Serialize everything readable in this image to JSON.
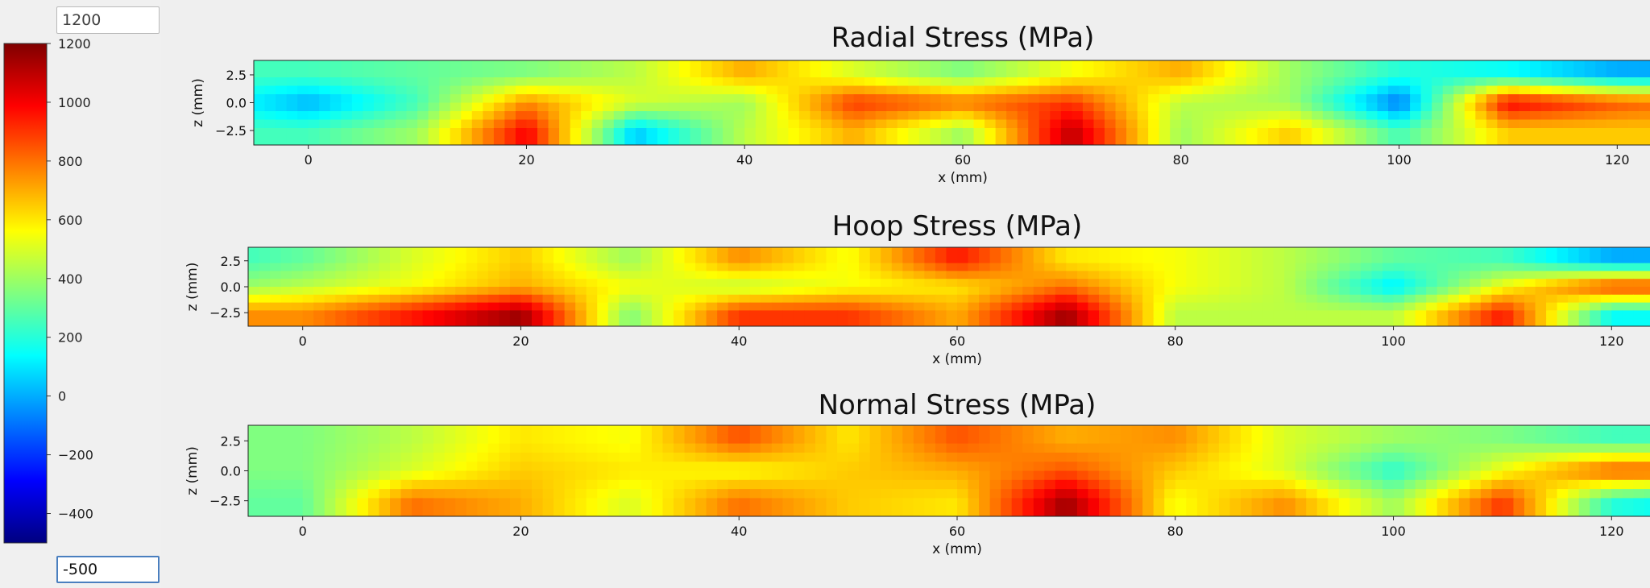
{
  "colorbar": {
    "max_input_value": "1200",
    "min_input_value": "-500",
    "colormap": "jet",
    "vmin": -500,
    "vmax": 1200,
    "ticks": [
      "1200",
      "1000",
      "800",
      "600",
      "400",
      "200",
      "0",
      "−200",
      "−400"
    ],
    "tick_values": [
      1200,
      1000,
      800,
      600,
      400,
      200,
      0,
      -200,
      -400
    ]
  },
  "chart_data": [
    {
      "type": "heatmap",
      "title": "Radial Stress (MPa)",
      "xlabel": "x (mm)",
      "ylabel": "z (mm)",
      "xlim": [
        -5,
        125
      ],
      "ylim": [
        -3.8,
        3.8
      ],
      "xticks": [
        0,
        20,
        40,
        60,
        80,
        100,
        120
      ],
      "yticks": [
        2.5,
        0.0,
        -2.5
      ],
      "xtick_labels": [
        "0",
        "20",
        "40",
        "60",
        "80",
        "100",
        "120"
      ],
      "ytick_labels": [
        "2.5",
        "0.0",
        "−2.5"
      ],
      "z_levels": [
        2.5,
        0.0,
        -2.5
      ],
      "x": [
        -5,
        0,
        10,
        20,
        30,
        40,
        50,
        60,
        70,
        80,
        90,
        100,
        110,
        120,
        125
      ],
      "values": [
        [
          250,
          250,
          300,
          350,
          450,
          700,
          500,
          350,
          550,
          700,
          400,
          200,
          150,
          0,
          0
        ],
        [
          100,
          0,
          250,
          750,
          500,
          400,
          900,
          800,
          900,
          450,
          400,
          -100,
          1000,
          850,
          800
        ],
        [
          250,
          250,
          400,
          1000,
          50,
          450,
          700,
          400,
          1100,
          400,
          650,
          250,
          650,
          650,
          650
        ]
      ]
    },
    {
      "type": "heatmap",
      "title": "Hoop Stress (MPa)",
      "xlabel": "x (mm)",
      "ylabel": "z (mm)",
      "xlim": [
        -5,
        125
      ],
      "ylim": [
        -3.8,
        3.8
      ],
      "xticks": [
        0,
        20,
        40,
        60,
        80,
        100,
        120
      ],
      "yticks": [
        2.5,
        0.0,
        -2.5
      ],
      "xtick_labels": [
        "0",
        "20",
        "40",
        "60",
        "80",
        "100",
        "120"
      ],
      "ytick_labels": [
        "2.5",
        "0.0",
        "−2.5"
      ],
      "z_levels": [
        2.5,
        0.0,
        -2.5
      ],
      "x": [
        -5,
        0,
        10,
        20,
        30,
        40,
        50,
        60,
        70,
        80,
        90,
        100,
        110,
        120,
        125
      ],
      "values": [
        [
          250,
          300,
          500,
          650,
          400,
          750,
          550,
          950,
          600,
          550,
          450,
          300,
          250,
          0,
          0
        ],
        [
          400,
          450,
          550,
          700,
          550,
          450,
          550,
          600,
          800,
          550,
          450,
          100,
          550,
          900,
          900
        ],
        [
          750,
          750,
          950,
          1150,
          350,
          900,
          900,
          700,
          1150,
          450,
          450,
          450,
          950,
          150,
          150
        ]
      ]
    },
    {
      "type": "heatmap",
      "title": "Normal Stress (MPa)",
      "xlabel": "x (mm)",
      "ylabel": "z (mm)",
      "xlim": [
        -5,
        125
      ],
      "ylim": [
        -3.8,
        3.8
      ],
      "xticks": [
        0,
        20,
        40,
        60,
        80,
        100,
        120
      ],
      "yticks": [
        2.5,
        0.0,
        -2.5
      ],
      "xtick_labels": [
        "0",
        "20",
        "40",
        "60",
        "80",
        "100",
        "120"
      ],
      "ytick_labels": [
        "2.5",
        "0.0",
        "−2.5"
      ],
      "z_levels": [
        2.5,
        0.0,
        -2.5
      ],
      "x": [
        -5,
        0,
        10,
        20,
        30,
        40,
        50,
        60,
        70,
        80,
        90,
        100,
        110,
        120,
        125
      ],
      "values": [
        [
          350,
          350,
          450,
          600,
          550,
          850,
          600,
          850,
          700,
          750,
          500,
          400,
          350,
          250,
          250
        ],
        [
          350,
          350,
          500,
          650,
          600,
          550,
          650,
          700,
          850,
          650,
          500,
          200,
          550,
          850,
          850
        ],
        [
          300,
          300,
          800,
          700,
          500,
          800,
          650,
          600,
          1150,
          550,
          750,
          400,
          900,
          200,
          150
        ]
      ]
    }
  ]
}
